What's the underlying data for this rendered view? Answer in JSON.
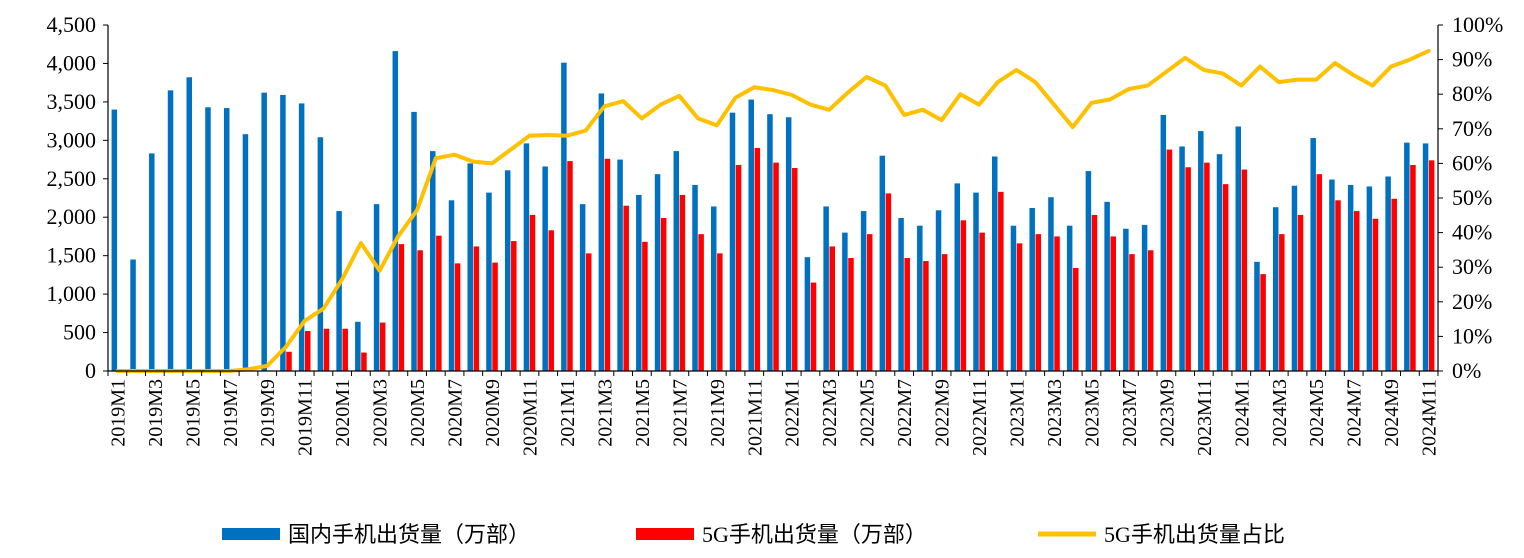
{
  "chart_data": {
    "type": "bar+line",
    "title": "",
    "categories": [
      "2019M1",
      "2019M2",
      "2019M3",
      "2019M4",
      "2019M5",
      "2019M6",
      "2019M7",
      "2019M8",
      "2019M9",
      "2019M10",
      "2019M11",
      "2019M12",
      "2020M1",
      "2020M2",
      "2020M3",
      "2020M4",
      "2020M5",
      "2020M6",
      "2020M7",
      "2020M8",
      "2020M9",
      "2020M10",
      "2020M11",
      "2020M12",
      "2021M1",
      "2021M2",
      "2021M3",
      "2021M4",
      "2021M5",
      "2021M6",
      "2021M7",
      "2021M8",
      "2021M9",
      "2021M10",
      "2021M11",
      "2021M12",
      "2022M1",
      "2022M2",
      "2022M3",
      "2022M4",
      "2022M5",
      "2022M6",
      "2022M7",
      "2022M8",
      "2022M9",
      "2022M10",
      "2022M11",
      "2022M12",
      "2023M1",
      "2023M2",
      "2023M3",
      "2023M4",
      "2023M5",
      "2023M6",
      "2023M7",
      "2023M8",
      "2023M9",
      "2023M10",
      "2023M11",
      "2023M12",
      "2024M1",
      "2024M2",
      "2024M3",
      "2024M4",
      "2024M5",
      "2024M6",
      "2024M7",
      "2024M8",
      "2024M9",
      "2024M10",
      "2024M11"
    ],
    "x_tick_labels": [
      "2019M1",
      "2019M3",
      "2019M5",
      "2019M7",
      "2019M9",
      "2019M11",
      "2020M1",
      "2020M3",
      "2020M5",
      "2020M7",
      "2020M9",
      "2020M11",
      "2021M1",
      "2021M3",
      "2021M5",
      "2021M7",
      "2021M9",
      "2021M11",
      "2022M1",
      "2022M3",
      "2022M5",
      "2022M7",
      "2022M9",
      "2022M11",
      "2023M1",
      "2023M3",
      "2023M5",
      "2023M7",
      "2023M9",
      "2023M11",
      "2024M1",
      "2024M3",
      "2024M5",
      "2024M7",
      "2024M9",
      "2024M11"
    ],
    "series": [
      {
        "name": "国内手机出货量（万部）",
        "kind": "bar",
        "axis": "left",
        "color": "#0070C0",
        "values": [
          3400,
          1450,
          2830,
          3650,
          3820,
          3430,
          3420,
          3080,
          3620,
          3590,
          3480,
          3040,
          2080,
          640,
          2170,
          4160,
          3370,
          2860,
          2220,
          2700,
          2320,
          2610,
          2960,
          2660,
          4010,
          2170,
          3610,
          2750,
          2290,
          2560,
          2860,
          2420,
          2140,
          3360,
          3530,
          3340,
          3300,
          1480,
          2140,
          1800,
          2080,
          2800,
          1990,
          1890,
          2090,
          2440,
          2320,
          2790,
          1890,
          2120,
          2260,
          1890,
          2600,
          2200,
          1850,
          1900,
          3330,
          2920,
          3120,
          2820,
          3180,
          1420,
          2130,
          2410,
          3030,
          2490,
          2420,
          2400,
          2530,
          2970,
          2960
        ]
      },
      {
        "name": "5G手机出货量（万部）",
        "kind": "bar",
        "axis": "left",
        "color": "#FF0000",
        "values": [
          0,
          0,
          0,
          0,
          0,
          0,
          0,
          0,
          0,
          250,
          520,
          550,
          550,
          240,
          630,
          1650,
          1570,
          1760,
          1400,
          1620,
          1410,
          1690,
          2030,
          1830,
          2730,
          1530,
          2760,
          2150,
          1680,
          1990,
          2290,
          1780,
          1530,
          2680,
          2900,
          2710,
          2640,
          1150,
          1620,
          1470,
          1780,
          2310,
          1470,
          1430,
          1520,
          1960,
          1800,
          2330,
          1660,
          1780,
          1750,
          1340,
          2030,
          1750,
          1520,
          1570,
          2880,
          2650,
          2710,
          2430,
          2620,
          1260,
          1780,
          2030,
          2560,
          2220,
          2080,
          1980,
          2240,
          2680,
          2740
        ]
      },
      {
        "name": "5G手机出货量占比",
        "kind": "line",
        "axis": "right",
        "color": "#FFC000",
        "values": [
          0,
          0,
          0,
          0,
          0,
          0,
          0,
          0.5,
          1.5,
          7,
          14.5,
          18,
          26.5,
          37,
          29,
          39,
          46.5,
          61.5,
          62.5,
          60.5,
          60,
          64,
          68,
          68.2,
          68,
          69.5,
          76.5,
          78,
          73,
          77,
          79.5,
          73,
          71,
          79,
          82,
          81.2,
          79.8,
          77,
          75.5,
          80.5,
          85,
          82.5,
          74,
          75.5,
          72.5,
          80,
          77,
          83.5,
          87,
          83.5,
          77,
          70.5,
          77.5,
          78.5,
          81.5,
          82.5,
          86.5,
          90.5,
          87,
          86,
          82.5,
          88,
          83.5,
          84.2,
          84.2,
          89,
          85.5,
          82.5,
          88,
          90,
          92.5
        ]
      }
    ],
    "y_left": {
      "min": 0,
      "max": 4500,
      "step": 500,
      "tick_labels": [
        "0",
        "500",
        "1,000",
        "1,500",
        "2,000",
        "2,500",
        "3,000",
        "3,500",
        "4,000",
        "4,500"
      ]
    },
    "y_right": {
      "min": 0,
      "max": 100,
      "step": 10,
      "tick_labels": [
        "0%",
        "10%",
        "20%",
        "30%",
        "40%",
        "50%",
        "60%",
        "70%",
        "80%",
        "90%",
        "100%"
      ]
    },
    "legend_position": "bottom-center",
    "grid": false
  },
  "legend": {
    "item1": "国内手机出货量（万部）",
    "item2": "5G手机出货量（万部）",
    "item3": "5G手机出货量占比"
  }
}
